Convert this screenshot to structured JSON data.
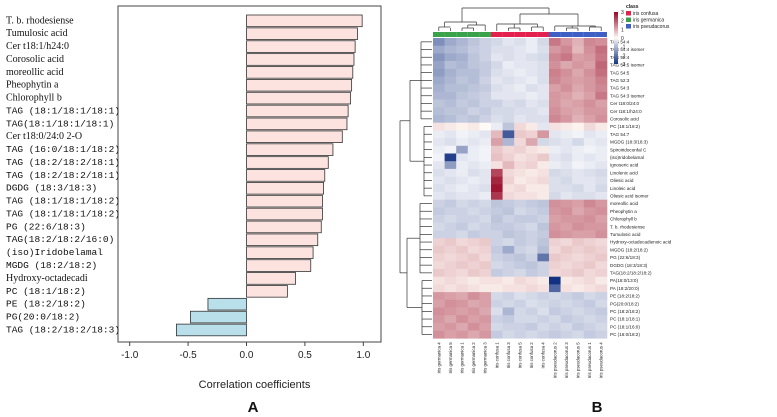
{
  "panels": {
    "a": "A",
    "b": "B"
  },
  "chart_data": [
    {
      "type": "bar",
      "orientation": "horizontal",
      "xlabel": "Correlation coefficients",
      "xlim": [
        -1.1,
        1.1
      ],
      "xticks": [
        "-1.0",
        "-0.5",
        "0.0",
        "0.5",
        "1.0"
      ],
      "positive_color": "#fde3df",
      "negative_color": "#b9e0ea",
      "bars": [
        {
          "label": "T. b. rhodesiense",
          "value": 0.99
        },
        {
          "label": "Tumulosic acid",
          "value": 0.95
        },
        {
          "label": "Cer t18:1/h24:0",
          "value": 0.93
        },
        {
          "label": "Corosolic acid",
          "value": 0.92
        },
        {
          "label": "moreollic acid",
          "value": 0.91
        },
        {
          "label": "Pheophytin a",
          "value": 0.9
        },
        {
          "label": "Chlorophyll b",
          "value": 0.89
        },
        {
          "label": "TAG (18:1/18:1/18:1)",
          "value": 0.87
        },
        {
          "label": "TAG(18:1/18:1/18:1)",
          "value": 0.86
        },
        {
          "label": "Cer t18:0/24:0 2-O",
          "value": 0.82
        },
        {
          "label": "TAG (16:0/18:1/18:2)",
          "value": 0.74
        },
        {
          "label": "TAG (18:2/18:2/18:1)",
          "value": 0.7
        },
        {
          "label": "TAG (18:2/18:2/18:1)",
          "value": 0.67
        },
        {
          "label": "DGDG (18:3/18:3)",
          "value": 0.66
        },
        {
          "label": "TAG (18:1/18:1/18:2)",
          "value": 0.65
        },
        {
          "label": "TAG (18:1/18:1/18:2)",
          "value": 0.65
        },
        {
          "label": "PG (22:6/18:3)",
          "value": 0.64
        },
        {
          "label": "TAG(18:2/18:2/16:0)",
          "value": 0.61
        },
        {
          "label": "(iso)Iridobelamal",
          "value": 0.57
        },
        {
          "label": "MGDG (18:2/18:2)",
          "value": 0.55
        },
        {
          "label": "Hydroxy-octadecadi",
          "value": 0.42
        },
        {
          "label": "PC (18:1/18:2)",
          "value": 0.35
        },
        {
          "label": "PE (18:2/18:2)",
          "value": -0.33
        },
        {
          "label": "PG(20:0/18:2)",
          "value": -0.48
        },
        {
          "label": "TAG (18:2/18:2/18:3)",
          "value": -0.6
        }
      ]
    },
    {
      "type": "heatmap",
      "legend_title": "class",
      "classes": [
        {
          "name": "iris confusa",
          "color": "#e3204e"
        },
        {
          "name": "iris germanica",
          "color": "#3aa24a"
        },
        {
          "name": "iris pseudacorus",
          "color": "#3e5fc4"
        }
      ],
      "colorbar_ticks": [
        "3",
        "2",
        "1",
        "0",
        "-1",
        "-2",
        "-3"
      ],
      "columns": [
        "Iris germanica 4",
        "Iris germanica 5",
        "Iris germanica 1",
        "Iris germanica 2",
        "Iris germanica 3",
        "Iris confusa 1",
        "Iris confusa 3",
        "Iris confusa 5",
        "Iris confusa 2",
        "Iris confusa 4",
        "Iris pseudacorus 2",
        "Iris pseudacorus 3",
        "Iris pseudacorus 5",
        "Iris pseudacorus 1",
        "Iris pseudacorus 4"
      ],
      "column_class": [
        1,
        1,
        1,
        1,
        1,
        0,
        0,
        0,
        0,
        0,
        2,
        2,
        2,
        2,
        2
      ],
      "rows": [
        "TAG 54:4",
        "TAG 54:4 isomer",
        "TAG 52:4",
        "TAG 54:5 isomer",
        "TAG 54:5",
        "TAG 52:3",
        "TAG 54:3",
        "TAG 54:3 isomer",
        "Cer t18:0/24:0",
        "Cer t18:1/h24:0",
        "Corosolic acid",
        "PC (18:1/18:2)",
        "TAG 54:7",
        "MGDG (18:3/18:3)",
        "Spiroiridoconfal C",
        "(iso)Iridobelamal",
        "Ignoseric acid",
        "Linolenic acid",
        "Oliesic acid",
        "Linoleic acid",
        "Oliesic acid isomer",
        "moreollic acid",
        "Pheophytin a",
        "Chlorophyll b",
        "T. b. rhodesiense",
        "Tumulosic acid",
        "Hydroxy-octadecadienoic acid",
        "MGDG (18:2/18:2)",
        "PG (22:6/18:3)",
        "DGDG (18:3/18:3)",
        "TAG(18:2/18:2/18:2)",
        "PA(18:0/13:0)",
        "PA (18:2/20:0)",
        "PE (18:2/18:2)",
        "PG(20:0/18:2)",
        "PC (18:2/18:2)",
        "PC (18:1/18:1)",
        "PC (18:1/16:0)",
        "PC (16:0/18:2)"
      ],
      "values": [
        [
          -1.6,
          -1.2,
          -1.0,
          -0.8,
          -0.6,
          -0.5,
          -0.3,
          -0.4,
          -0.2,
          -0.5,
          1.6,
          1.2,
          0.9,
          1.4,
          1.3
        ],
        [
          -1.2,
          -1.0,
          -0.9,
          -0.7,
          -0.6,
          -0.4,
          -0.4,
          -0.3,
          -0.2,
          -0.4,
          1.2,
          1.4,
          0.8,
          1.3,
          1.7
        ],
        [
          -1.5,
          -1.2,
          -1.1,
          -0.8,
          -0.6,
          -0.3,
          -0.4,
          -0.3,
          -0.4,
          -0.5,
          1.4,
          1.6,
          1.1,
          1.2,
          1.6
        ],
        [
          -1.3,
          -0.9,
          -1.0,
          -0.8,
          -0.7,
          -0.5,
          -0.2,
          -0.3,
          -0.3,
          -0.4,
          1.3,
          1.0,
          1.2,
          1.1,
          1.8
        ],
        [
          -1.4,
          -1.1,
          -0.9,
          -0.9,
          -0.7,
          -0.4,
          -0.3,
          -0.2,
          -0.3,
          -0.4,
          1.5,
          1.3,
          1.0,
          1.3,
          1.7
        ],
        [
          -1.2,
          -1.0,
          -0.8,
          -0.9,
          -0.6,
          -0.3,
          -0.4,
          -0.3,
          -0.2,
          -0.4,
          1.4,
          1.2,
          1.1,
          1.2,
          1.5
        ],
        [
          -1.1,
          -0.9,
          -0.9,
          -0.8,
          -0.7,
          -0.4,
          -0.3,
          -0.2,
          -0.4,
          -0.3,
          1.1,
          1.3,
          1.0,
          1.2,
          1.4
        ],
        [
          -1.0,
          -1.0,
          -0.8,
          -0.7,
          -0.6,
          -0.3,
          -0.3,
          -0.3,
          -0.2,
          -0.3,
          1.2,
          1.1,
          0.9,
          1.1,
          1.6
        ],
        [
          -0.8,
          -0.9,
          -0.7,
          -0.8,
          -0.6,
          -0.6,
          -0.4,
          -0.5,
          -0.3,
          -0.4,
          1.2,
          1.0,
          1.1,
          1.3,
          1.1
        ],
        [
          -0.9,
          -0.8,
          -0.8,
          -0.6,
          -0.7,
          -0.5,
          -0.5,
          -0.4,
          -0.4,
          -0.3,
          1.3,
          1.1,
          1.0,
          1.2,
          1.2
        ],
        [
          -1.0,
          -0.9,
          -0.7,
          -0.8,
          -0.6,
          -0.4,
          -0.5,
          -0.3,
          -0.4,
          -0.4,
          1.4,
          1.2,
          0.9,
          1.1,
          1.3
        ],
        [
          0.3,
          0.2,
          0.1,
          0.2,
          0.0,
          -0.2,
          -0.8,
          0.4,
          0.2,
          -0.3,
          0.3,
          0.2,
          0.1,
          0.4,
          0.2
        ],
        [
          -0.2,
          -0.3,
          -0.1,
          -0.2,
          -0.3,
          0.8,
          -2.4,
          0.6,
          0.5,
          1.2,
          -0.3,
          -0.2,
          -0.1,
          -0.3,
          -0.2
        ],
        [
          -0.3,
          -0.4,
          -0.2,
          -0.3,
          -0.2,
          1.1,
          -1.0,
          0.4,
          1.0,
          -0.5,
          -0.4,
          -0.3,
          -0.5,
          -0.2,
          -0.3
        ],
        [
          -0.2,
          -0.1,
          -1.3,
          -0.2,
          -0.1,
          0.6,
          0.4,
          0.5,
          0.3,
          0.2,
          -0.2,
          -0.3,
          -0.2,
          -0.1,
          -0.2
        ],
        [
          -0.1,
          -2.8,
          -0.3,
          -0.2,
          -0.1,
          0.7,
          0.5,
          0.3,
          0.4,
          0.6,
          -0.3,
          -0.4,
          -0.2,
          -0.3,
          -0.2
        ],
        [
          -0.3,
          -1.4,
          -0.2,
          -0.3,
          -0.2,
          0.3,
          0.8,
          0.4,
          0.5,
          0.2,
          -0.2,
          -0.3,
          -0.1,
          -0.2,
          -0.3
        ],
        [
          -0.4,
          -0.3,
          -0.2,
          -0.4,
          -0.3,
          2.2,
          0.4,
          0.3,
          0.2,
          0.3,
          -0.5,
          -0.4,
          -0.3,
          -0.4,
          -0.5
        ],
        [
          -0.3,
          -0.4,
          -0.3,
          -0.2,
          -0.3,
          2.6,
          0.5,
          0.2,
          0.3,
          0.4,
          -0.4,
          -0.5,
          -0.3,
          -0.3,
          -0.4
        ],
        [
          -0.4,
          -0.3,
          -0.2,
          -0.3,
          -0.4,
          2.8,
          0.3,
          0.4,
          0.2,
          0.2,
          -0.4,
          -0.4,
          -0.5,
          -0.3,
          -0.5
        ],
        [
          -0.3,
          -0.4,
          -0.3,
          -0.3,
          -0.2,
          2.4,
          0.4,
          0.3,
          0.3,
          0.2,
          -0.5,
          -0.3,
          -0.4,
          -0.4,
          -0.3
        ],
        [
          -0.6,
          -0.7,
          -0.5,
          -0.6,
          -0.5,
          -0.8,
          -0.7,
          -0.6,
          -0.7,
          -0.8,
          1.3,
          1.2,
          1.1,
          1.4,
          1.2
        ],
        [
          -0.7,
          -0.6,
          -0.6,
          -0.5,
          -0.6,
          -0.7,
          -0.8,
          -0.5,
          -0.6,
          -0.7,
          1.2,
          1.3,
          1.0,
          1.2,
          1.3
        ],
        [
          -0.6,
          -0.5,
          -0.6,
          -0.6,
          -0.5,
          -0.8,
          -0.6,
          -0.7,
          -0.7,
          -0.6,
          1.1,
          1.2,
          1.2,
          1.3,
          1.1
        ],
        [
          -0.5,
          -0.6,
          -0.7,
          -0.5,
          -0.6,
          -0.7,
          -0.7,
          -0.6,
          -0.5,
          -0.8,
          1.2,
          1.1,
          1.3,
          1.2,
          1.2
        ],
        [
          -0.6,
          -0.6,
          -0.5,
          -0.7,
          -0.6,
          -0.6,
          -0.8,
          -0.7,
          -0.6,
          -0.7,
          1.3,
          1.2,
          1.1,
          1.1,
          1.3
        ],
        [
          0.5,
          0.6,
          0.4,
          0.5,
          0.6,
          -0.6,
          -0.5,
          -0.7,
          -0.6,
          -0.8,
          0.5,
          0.4,
          0.6,
          0.5,
          0.4
        ],
        [
          0.6,
          0.5,
          0.6,
          0.4,
          0.5,
          -0.7,
          -1.2,
          -0.6,
          -0.5,
          -0.9,
          0.4,
          0.6,
          0.5,
          0.6,
          0.5
        ],
        [
          0.5,
          0.4,
          0.5,
          0.6,
          0.4,
          -0.6,
          -0.7,
          -0.8,
          -0.6,
          -2.0,
          0.6,
          0.5,
          0.4,
          0.5,
          0.6
        ],
        [
          0.4,
          0.5,
          0.6,
          0.5,
          0.6,
          -0.5,
          -0.6,
          -0.7,
          -0.8,
          -0.6,
          0.5,
          0.4,
          0.5,
          0.6,
          0.4
        ],
        [
          0.6,
          0.5,
          0.4,
          0.6,
          0.5,
          -0.7,
          -0.6,
          -0.5,
          -0.7,
          -0.6,
          0.4,
          0.5,
          0.6,
          0.4,
          0.5
        ],
        [
          0.3,
          0.4,
          0.3,
          0.2,
          0.3,
          0.3,
          0.2,
          0.4,
          0.3,
          0.2,
          -3.0,
          0.2,
          0.3,
          0.4,
          0.2
        ],
        [
          0.4,
          0.3,
          0.4,
          0.3,
          0.2,
          0.2,
          0.3,
          0.3,
          0.4,
          0.3,
          -2.2,
          0.3,
          0.2,
          0.3,
          0.4
        ],
        [
          1.2,
          1.1,
          1.0,
          1.3,
          1.1,
          -0.5,
          -0.6,
          -0.4,
          -0.5,
          -0.6,
          -0.5,
          -0.6,
          -0.7,
          -0.5,
          -0.6
        ],
        [
          1.1,
          1.3,
          1.2,
          1.0,
          1.1,
          -0.6,
          -0.5,
          -0.6,
          -0.4,
          -0.5,
          -0.6,
          -0.5,
          -0.6,
          -0.7,
          -0.5
        ],
        [
          1.3,
          1.2,
          1.1,
          1.2,
          1.0,
          -0.4,
          -1.0,
          -0.5,
          -0.6,
          -0.4,
          -0.7,
          -0.6,
          -0.5,
          -0.6,
          -0.7
        ],
        [
          1.2,
          1.0,
          1.3,
          1.1,
          1.2,
          -0.6,
          -0.7,
          -0.5,
          -0.5,
          -0.6,
          -0.5,
          -0.7,
          -0.6,
          -0.5,
          -0.6
        ],
        [
          1.1,
          1.2,
          1.0,
          1.3,
          1.1,
          -0.5,
          -0.6,
          -0.6,
          -0.7,
          -0.5,
          -0.6,
          -0.5,
          -0.7,
          -0.6,
          -0.5
        ],
        [
          1.3,
          1.1,
          1.2,
          1.0,
          1.2,
          -0.7,
          -0.5,
          -0.6,
          -0.5,
          -0.6,
          -0.7,
          -0.6,
          -0.5,
          -0.7,
          -0.6
        ]
      ]
    }
  ]
}
